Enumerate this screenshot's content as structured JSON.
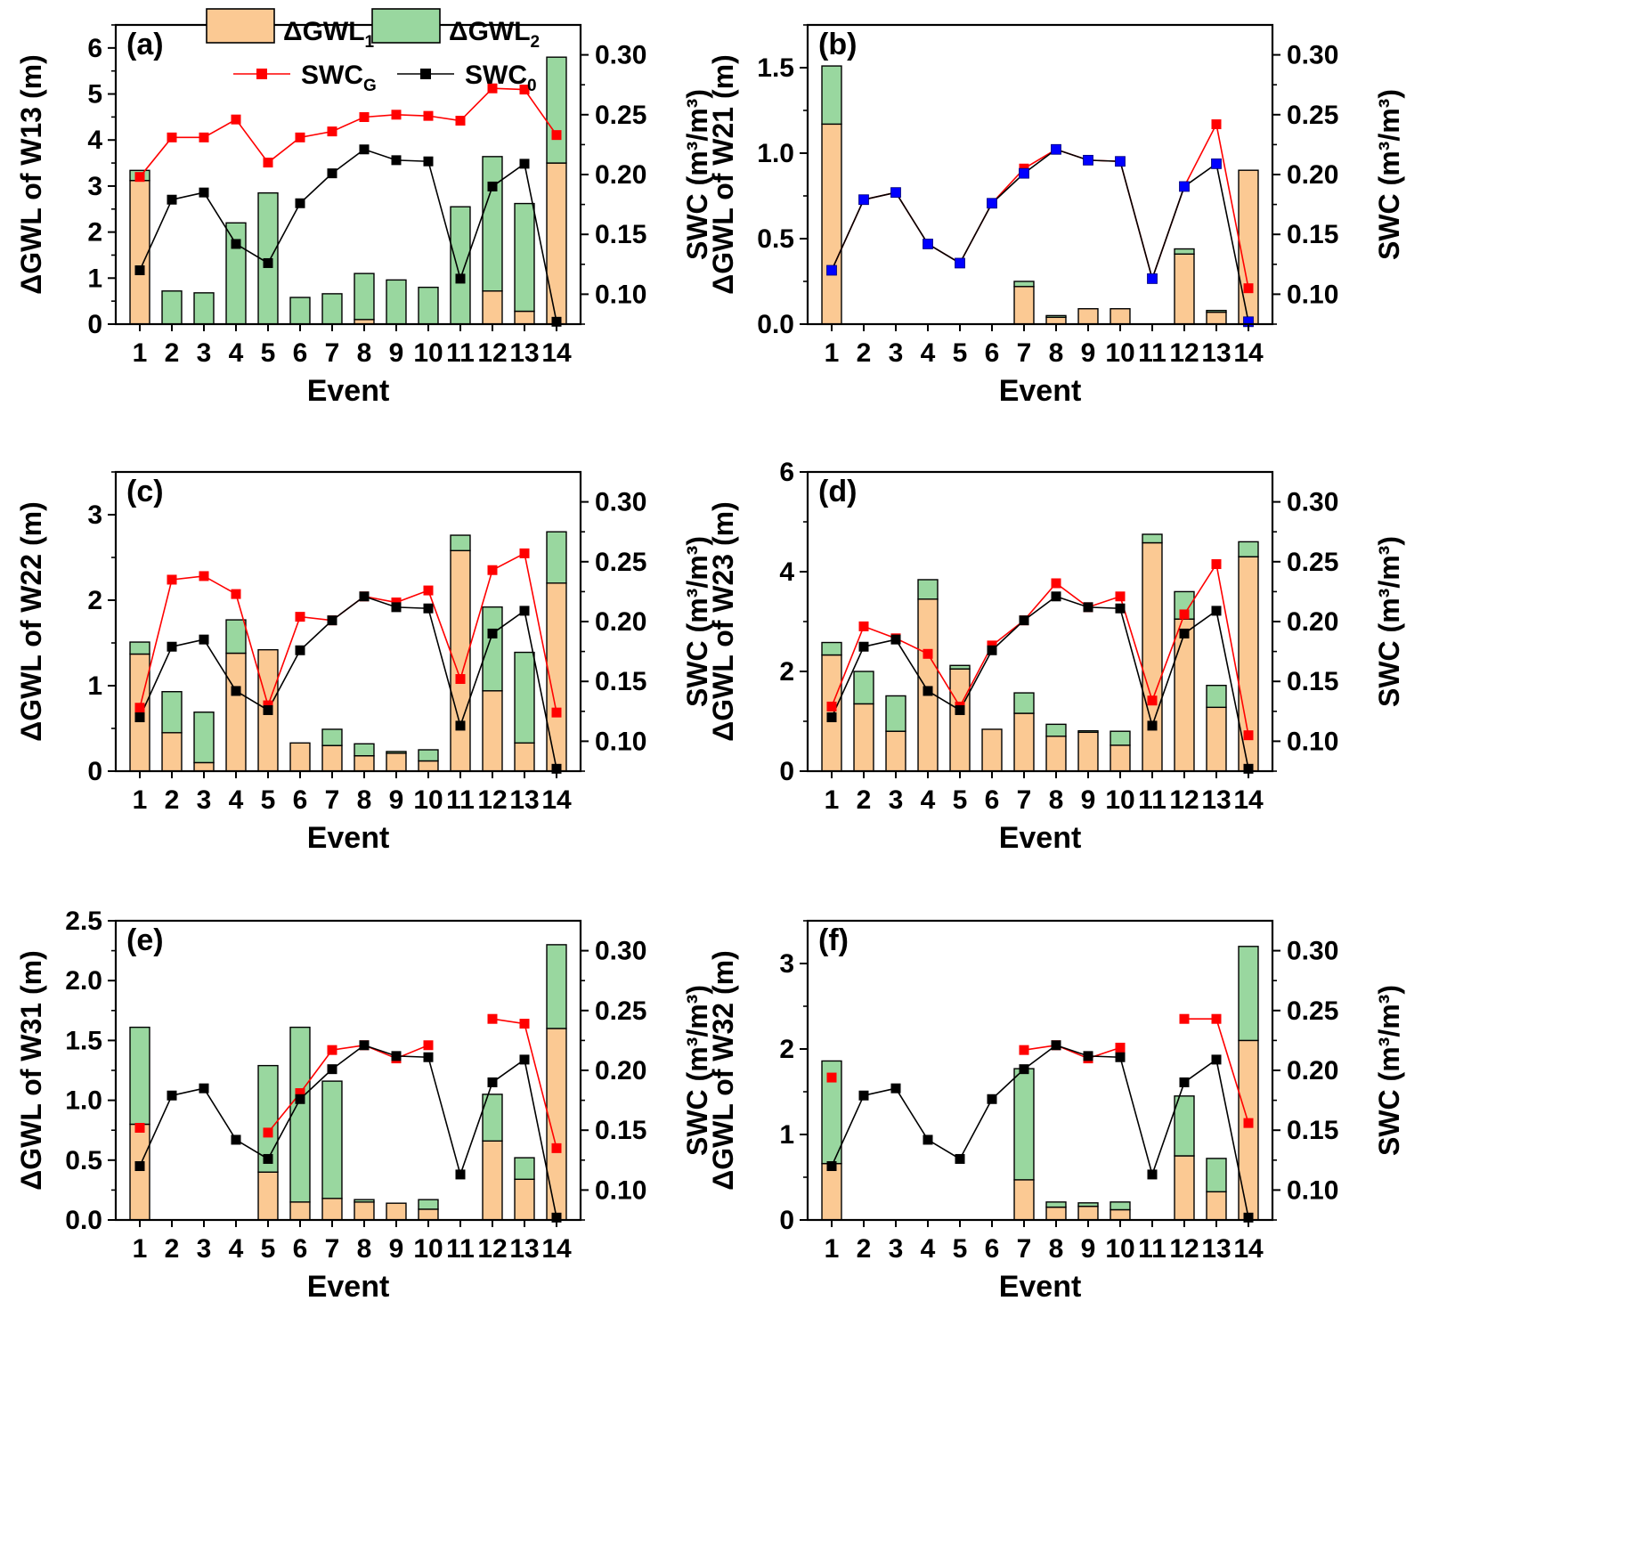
{
  "legend": {
    "gwl1": "ΔGWL",
    "gwl1_sub": "1",
    "gwl2": "ΔGWL",
    "gwl2_sub": "2",
    "swcg": "SWC",
    "swcg_sub": "G",
    "swc0": "SWC",
    "swc0_sub": "0"
  },
  "colors": {
    "gwl1": "#fbc993",
    "gwl2": "#99d79f",
    "swcg": "#ff0000",
    "swc0": "#000000",
    "swc_marker_b": "#0000ff",
    "axis": "#000000"
  },
  "chart_data": [
    {
      "type": "bar",
      "panel": "(a)",
      "title": "",
      "xlabel": "Event",
      "ylabel": "ΔGWL of W13 (m)",
      "y2label": "SWC (m³/m³)",
      "categories": [
        "1",
        "2",
        "3",
        "4",
        "5",
        "6",
        "7",
        "8",
        "9",
        "10",
        "11",
        "12",
        "13",
        "14"
      ],
      "ylim": [
        0,
        6.5
      ],
      "yticks": [
        0,
        1,
        2,
        3,
        4,
        5,
        6
      ],
      "yticklabels": [
        "0",
        "1",
        "2",
        "3",
        "4",
        "5",
        "6"
      ],
      "y2lim": [
        0.075,
        0.325
      ],
      "y2ticks": [
        0.1,
        0.15,
        0.2,
        0.25,
        0.3
      ],
      "y2ticklabels": [
        "0.10",
        "0.15",
        "0.20",
        "0.25",
        "0.30"
      ],
      "series": [
        {
          "name": "ΔGWL1",
          "kind": "bar",
          "values": [
            3.12,
            0,
            0,
            0,
            0,
            0,
            0,
            0.1,
            0,
            0,
            0,
            0.72,
            0.28,
            3.5
          ]
        },
        {
          "name": "ΔGWL2",
          "kind": "bar",
          "values": [
            0.22,
            0.72,
            0.68,
            2.2,
            2.85,
            0.58,
            0.66,
            1.0,
            0.96,
            0.8,
            2.55,
            2.92,
            2.34,
            2.3
          ]
        },
        {
          "name": "SWCG",
          "kind": "line",
          "values": [
            0.198,
            0.231,
            0.231,
            0.246,
            0.21,
            0.231,
            0.236,
            0.248,
            0.25,
            0.249,
            0.245,
            0.272,
            0.271,
            0.233
          ]
        },
        {
          "name": "SWC0",
          "kind": "line",
          "values": [
            0.12,
            0.179,
            0.185,
            0.142,
            0.126,
            0.176,
            0.201,
            0.221,
            0.212,
            0.211,
            0.113,
            0.19,
            0.209,
            0.077
          ]
        }
      ]
    },
    {
      "type": "bar",
      "panel": "(b)",
      "title": "",
      "xlabel": "Event",
      "ylabel": "ΔGWL of W21 (m)",
      "y2label": "SWC (m³/m³)",
      "categories": [
        "1",
        "2",
        "3",
        "4",
        "5",
        "6",
        "7",
        "8",
        "9",
        "10",
        "11",
        "12",
        "13",
        "14"
      ],
      "ylim": [
        0,
        1.75
      ],
      "yticks": [
        0,
        0.5,
        1.0,
        1.5
      ],
      "yticklabels": [
        "0.0",
        "0.5",
        "1.0",
        "1.5"
      ],
      "y2lim": [
        0.075,
        0.325
      ],
      "y2ticks": [
        0.1,
        0.15,
        0.2,
        0.25,
        0.3
      ],
      "y2ticklabels": [
        "0.10",
        "0.15",
        "0.20",
        "0.25",
        "0.30"
      ],
      "series": [
        {
          "name": "ΔGWL1",
          "kind": "bar",
          "values": [
            1.17,
            0,
            0,
            0,
            0,
            0,
            0.22,
            0.04,
            0.09,
            0.09,
            0,
            0.41,
            0.07,
            0.9
          ]
        },
        {
          "name": "ΔGWL2",
          "kind": "bar",
          "values": [
            0.34,
            0,
            0,
            0,
            0,
            0,
            0.03,
            0.01,
            0,
            0,
            0,
            0.03,
            0.01,
            0
          ]
        },
        {
          "name": "SWCG",
          "kind": "line",
          "values": [
            0.12,
            0.179,
            0.185,
            0.142,
            0.126,
            0.176,
            0.205,
            0.221,
            0.212,
            0.211,
            0.113,
            0.19,
            0.242,
            0.105
          ]
        },
        {
          "name": "SWC0",
          "kind": "line",
          "values": [
            0.12,
            0.179,
            0.185,
            0.142,
            0.126,
            0.176,
            0.201,
            0.221,
            0.212,
            0.211,
            0.113,
            0.19,
            0.209,
            0.077
          ]
        }
      ]
    },
    {
      "type": "bar",
      "panel": "(c)",
      "title": "",
      "xlabel": "Event",
      "ylabel": "ΔGWL of W22 (m)",
      "y2label": "SWC (m³/m³)",
      "categories": [
        "1",
        "2",
        "3",
        "4",
        "5",
        "6",
        "7",
        "8",
        "9",
        "10",
        "11",
        "12",
        "13",
        "14"
      ],
      "ylim": [
        0,
        3.5
      ],
      "yticks": [
        0,
        1,
        2,
        3
      ],
      "yticklabels": [
        "0",
        "1",
        "2",
        "3"
      ],
      "y2lim": [
        0.075,
        0.325
      ],
      "y2ticks": [
        0.1,
        0.15,
        0.2,
        0.25,
        0.3
      ],
      "y2ticklabels": [
        "0.10",
        "0.15",
        "0.20",
        "0.25",
        "0.30"
      ],
      "series": [
        {
          "name": "ΔGWL1",
          "kind": "bar",
          "values": [
            1.37,
            0.45,
            0.1,
            1.38,
            1.42,
            0.33,
            0.3,
            0.18,
            0.21,
            0.12,
            2.58,
            0.94,
            0.33,
            2.2
          ]
        },
        {
          "name": "ΔGWL2",
          "kind": "bar",
          "values": [
            0.14,
            0.48,
            0.59,
            0.39,
            0,
            0,
            0.19,
            0.14,
            0.02,
            0.13,
            0.18,
            0.98,
            1.06,
            0.6
          ]
        },
        {
          "name": "SWCG",
          "kind": "line",
          "values": [
            0.128,
            0.235,
            0.238,
            0.223,
            0.13,
            0.204,
            0.201,
            0.221,
            0.216,
            0.226,
            0.152,
            0.243,
            0.257,
            0.124
          ]
        },
        {
          "name": "SWC0",
          "kind": "line",
          "values": [
            0.12,
            0.179,
            0.185,
            0.142,
            0.126,
            0.176,
            0.201,
            0.221,
            0.212,
            0.211,
            0.113,
            0.19,
            0.209,
            0.077
          ]
        }
      ]
    },
    {
      "type": "bar",
      "panel": "(d)",
      "title": "",
      "xlabel": "Event",
      "ylabel": "ΔGWL of W23 (m)",
      "y2label": "SWC (m³/m³)",
      "categories": [
        "1",
        "2",
        "3",
        "4",
        "5",
        "6",
        "7",
        "8",
        "9",
        "10",
        "11",
        "12",
        "13",
        "14"
      ],
      "ylim": [
        0,
        6
      ],
      "yticks": [
        0,
        2,
        4,
        6
      ],
      "yticklabels": [
        "0",
        "2",
        "4",
        "6"
      ],
      "y2lim": [
        0.075,
        0.325
      ],
      "y2ticks": [
        0.1,
        0.15,
        0.2,
        0.25,
        0.3
      ],
      "y2ticklabels": [
        "0.10",
        "0.15",
        "0.20",
        "0.25",
        "0.30"
      ],
      "series": [
        {
          "name": "ΔGWL1",
          "kind": "bar",
          "values": [
            2.33,
            1.35,
            0.8,
            3.45,
            2.05,
            0.84,
            1.16,
            0.7,
            0.78,
            0.52,
            4.58,
            3.05,
            1.28,
            4.3
          ]
        },
        {
          "name": "ΔGWL2",
          "kind": "bar",
          "values": [
            0.25,
            0.65,
            0.71,
            0.39,
            0.07,
            0,
            0.41,
            0.24,
            0.03,
            0.28,
            0.17,
            0.55,
            0.44,
            0.3
          ]
        },
        {
          "name": "SWCG",
          "kind": "line",
          "values": [
            0.129,
            0.196,
            0.186,
            0.173,
            0.129,
            0.18,
            0.201,
            0.232,
            0.212,
            0.221,
            0.134,
            0.206,
            0.248,
            0.105
          ]
        },
        {
          "name": "SWC0",
          "kind": "line",
          "values": [
            0.12,
            0.179,
            0.185,
            0.142,
            0.126,
            0.176,
            0.201,
            0.221,
            0.212,
            0.211,
            0.113,
            0.19,
            0.209,
            0.077
          ]
        }
      ]
    },
    {
      "type": "bar",
      "panel": "(e)",
      "title": "",
      "xlabel": "Event",
      "ylabel": "ΔGWL of W31 (m)",
      "y2label": "SWC (m³/m³)",
      "categories": [
        "1",
        "2",
        "3",
        "4",
        "5",
        "6",
        "7",
        "8",
        "9",
        "10",
        "11",
        "12",
        "13",
        "14"
      ],
      "ylim": [
        0,
        2.5
      ],
      "yticks": [
        0,
        0.5,
        1.0,
        1.5,
        2.0,
        2.5
      ],
      "yticklabels": [
        "0.0",
        "0.5",
        "1.0",
        "1.5",
        "2.0",
        "2.5"
      ],
      "y2lim": [
        0.075,
        0.325
      ],
      "y2ticks": [
        0.1,
        0.15,
        0.2,
        0.25,
        0.3
      ],
      "y2ticklabels": [
        "0.10",
        "0.15",
        "0.20",
        "0.25",
        "0.30"
      ],
      "series": [
        {
          "name": "ΔGWL1",
          "kind": "bar",
          "values": [
            0.8,
            0,
            0,
            0,
            0.4,
            0.15,
            0.18,
            0.15,
            0.14,
            0.09,
            0,
            0.66,
            0.34,
            1.6
          ]
        },
        {
          "name": "ΔGWL2",
          "kind": "bar",
          "values": [
            0.81,
            0,
            0,
            0,
            0.89,
            1.46,
            0.98,
            0.02,
            0,
            0.08,
            0,
            0.39,
            0.18,
            0.7
          ]
        },
        {
          "name": "SWCG",
          "kind": "line",
          "values": [
            0.152,
            null,
            null,
            null,
            0.148,
            0.181,
            0.217,
            0.221,
            0.21,
            0.221,
            null,
            0.243,
            0.239,
            0.135
          ]
        },
        {
          "name": "SWC0",
          "kind": "line",
          "values": [
            0.12,
            0.179,
            0.185,
            0.142,
            0.126,
            0.176,
            0.201,
            0.221,
            0.212,
            0.211,
            0.113,
            0.19,
            0.209,
            0.077
          ]
        }
      ]
    },
    {
      "type": "bar",
      "panel": "(f)",
      "title": "",
      "xlabel": "Event",
      "ylabel": "ΔGWL of W32 (m)",
      "y2label": "SWC (m³/m³)",
      "categories": [
        "1",
        "2",
        "3",
        "4",
        "5",
        "6",
        "7",
        "8",
        "9",
        "10",
        "11",
        "12",
        "13",
        "14"
      ],
      "ylim": [
        0,
        3.5
      ],
      "yticks": [
        0,
        1,
        2,
        3
      ],
      "yticklabels": [
        "0",
        "1",
        "2",
        "3"
      ],
      "y2lim": [
        0.075,
        0.325
      ],
      "y2ticks": [
        0.1,
        0.15,
        0.2,
        0.25,
        0.3
      ],
      "y2ticklabels": [
        "0.10",
        "0.15",
        "0.20",
        "0.25",
        "0.30"
      ],
      "series": [
        {
          "name": "ΔGWL1",
          "kind": "bar",
          "values": [
            0.66,
            0,
            0,
            0,
            0,
            0,
            0.47,
            0.15,
            0.16,
            0.12,
            0,
            0.75,
            0.33,
            2.1
          ]
        },
        {
          "name": "ΔGWL2",
          "kind": "bar",
          "values": [
            1.2,
            0,
            0,
            0,
            0,
            0,
            1.3,
            0.06,
            0.04,
            0.09,
            0,
            0.7,
            0.39,
            1.1
          ]
        },
        {
          "name": "SWCG",
          "kind": "line",
          "values": [
            0.194,
            null,
            null,
            null,
            null,
            null,
            0.217,
            0.221,
            0.21,
            0.219,
            null,
            0.243,
            0.243,
            0.156
          ]
        },
        {
          "name": "SWC0",
          "kind": "line",
          "values": [
            0.12,
            0.179,
            0.185,
            0.142,
            0.126,
            0.176,
            0.201,
            0.221,
            0.212,
            0.211,
            0.113,
            0.19,
            0.209,
            0.077
          ]
        }
      ]
    }
  ]
}
